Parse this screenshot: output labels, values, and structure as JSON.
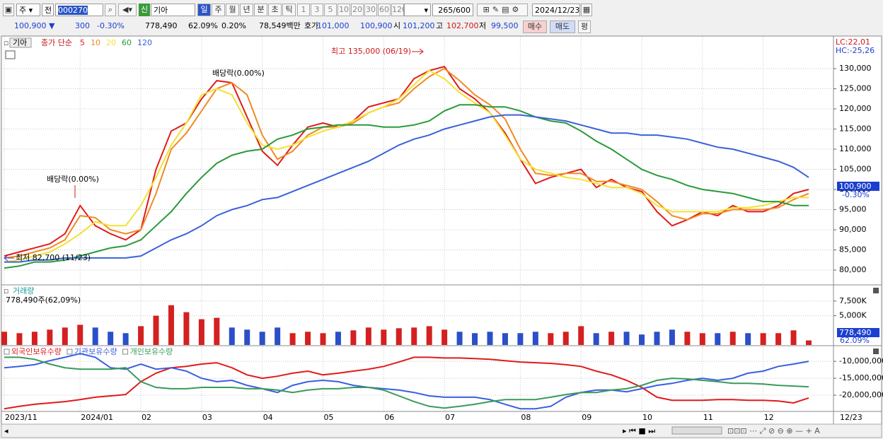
{
  "toolbar": {
    "market": "주",
    "scope": "전",
    "code": "000270",
    "badge": "신",
    "name": "기아",
    "periods": [
      "일",
      "주",
      "월",
      "년",
      "분",
      "초",
      "틱"
    ],
    "intervals": [
      "1",
      "3",
      "5",
      "10",
      "20",
      "30",
      "60",
      "120"
    ],
    "count": "265",
    "max": "/600",
    "date": "2024/12/23"
  },
  "quote": {
    "price": "100,900 ▼",
    "change": "300",
    "change_pct": "-0.30%",
    "volume": "778,490",
    "volume_ratio": "62.09%",
    "turnover_pct": "0.20%",
    "amount": "78,549백만",
    "ask_label": "호가",
    "ask": "101,000",
    "bid": "100,900",
    "open_label": "시",
    "open": "101,200",
    "high_label": "고",
    "high": "102,700",
    "low_label": "저",
    "low": "99,500",
    "buy": "매수",
    "sell": "매도",
    "eval": "평"
  },
  "chart_tab": "기아",
  "chart_data": [
    {
      "type": "line",
      "legend_title": "종가 단순",
      "ylim": [
        76500,
        137900
      ],
      "yticks": [
        {
          "value": 80000,
          "label": "80,000"
        },
        {
          "value": 85000,
          "label": "85,000"
        },
        {
          "value": 90000,
          "label": "90,000"
        },
        {
          "value": 95000,
          "label": "95,000"
        },
        {
          "value": 100000,
          "label": "100,000"
        },
        {
          "value": 105000,
          "label": "105,000"
        },
        {
          "value": 110000,
          "label": "110,000"
        },
        {
          "value": 115000,
          "label": "115,000"
        },
        {
          "value": 120000,
          "label": "120,000"
        },
        {
          "value": 125000,
          "label": "125,000"
        },
        {
          "value": 130000,
          "label": "130,000"
        }
      ],
      "grid": true,
      "annotations": {
        "high": "최고 135,000 (06/19)",
        "ex_div": [
          "배당락(0.00%)",
          "배당락(0.00%)"
        ],
        "low": "최저 82,700 (11/23)"
      },
      "lc": "LC:22,01",
      "hc": "HC:-25,26",
      "last_label": "100,900",
      "last_change": "-0.30%",
      "series": [
        {
          "name": "5",
          "color": "#e01b1b",
          "values": [
            83500,
            84500,
            85500,
            86500,
            89000,
            96000,
            91000,
            89000,
            87500,
            90000,
            105000,
            114500,
            116500,
            122500,
            127000,
            126500,
            118000,
            109500,
            106000,
            111000,
            115500,
            116500,
            115500,
            117000,
            120500,
            121500,
            122500,
            127500,
            129500,
            130500,
            125000,
            122500,
            119000,
            114000,
            107500,
            101500,
            103000,
            104000,
            105000,
            100500,
            102500,
            100500,
            99500,
            94500,
            91000,
            92500,
            94500,
            93500,
            96000,
            94500,
            94500,
            96000,
            99000,
            100000
          ]
        },
        {
          "name": "10",
          "color": "#f08a24",
          "values": [
            83000,
            83500,
            84500,
            85500,
            87500,
            93500,
            93000,
            90000,
            89000,
            90000,
            99000,
            110000,
            114000,
            119500,
            125000,
            126500,
            123500,
            113500,
            107500,
            109500,
            113500,
            115500,
            115500,
            116500,
            119000,
            120500,
            121500,
            125000,
            128000,
            130000,
            127000,
            123500,
            121000,
            117500,
            110000,
            104000,
            103500,
            104000,
            104000,
            102000,
            102000,
            101000,
            100000,
            97000,
            93500,
            92500,
            94000,
            94000,
            95000,
            95000,
            95000,
            95500,
            97500,
            99000
          ]
        },
        {
          "name": "20",
          "color": "#f2e233",
          "values": [
            82000,
            82500,
            83500,
            84500,
            86500,
            89000,
            92000,
            91000,
            91000,
            96000,
            103000,
            111000,
            116500,
            123500,
            125000,
            123500,
            116500,
            111000,
            110000,
            111000,
            113000,
            114500,
            115500,
            117000,
            119000,
            120500,
            122500,
            126000,
            129500,
            127500,
            124000,
            121500,
            119000,
            113500,
            107500,
            105000,
            104000,
            103000,
            102500,
            101500,
            100500,
            100500,
            99000,
            96000,
            94500,
            94500,
            94500,
            94500,
            95500,
            95500,
            96000,
            97000,
            98000,
            98000
          ]
        },
        {
          "name": "60",
          "color": "#2a9a3a",
          "values": [
            80500,
            81000,
            82000,
            82000,
            82500,
            83500,
            84500,
            85500,
            86000,
            87500,
            91000,
            94500,
            99000,
            103000,
            106500,
            108500,
            109500,
            110000,
            112500,
            113500,
            115000,
            115500,
            116000,
            116000,
            116000,
            115500,
            115500,
            116000,
            117000,
            119500,
            121000,
            121000,
            120500,
            120500,
            119500,
            118000,
            117000,
            116500,
            114500,
            112000,
            110000,
            107500,
            105000,
            103500,
            102500,
            101000,
            100000,
            99500,
            99000,
            98000,
            97000,
            97000,
            96000,
            96000
          ]
        },
        {
          "name": "120",
          "color": "#3a62d8",
          "values": [
            82000,
            82000,
            82500,
            82500,
            83000,
            83000,
            83000,
            83000,
            83000,
            83500,
            85500,
            87500,
            89000,
            91000,
            93500,
            95000,
            96000,
            97500,
            98000,
            99500,
            101000,
            102500,
            104000,
            105500,
            107000,
            109000,
            111000,
            112500,
            113500,
            115000,
            116000,
            117000,
            118000,
            118500,
            118500,
            118000,
            117500,
            117000,
            116000,
            115000,
            114000,
            114000,
            113500,
            113500,
            113000,
            112500,
            111500,
            110500,
            110000,
            109000,
            108000,
            107000,
            105500,
            103000
          ]
        }
      ]
    },
    {
      "type": "bar",
      "title": "거래량",
      "subtitle": "778,490주(62,09%)",
      "color_up": "#d42020",
      "color_down": "#2a4fc8",
      "ylim": [
        0,
        9900000
      ],
      "yticks": [
        {
          "value": 5000000,
          "label": "5,000K"
        },
        {
          "value": 7500000,
          "label": "7,500K"
        }
      ],
      "last_label": "778,490",
      "last_ratio": "62.09%",
      "values": [
        2260000,
        2020000,
        2260000,
        2620000,
        2980000,
        3450000,
        2980000,
        2260000,
        2020000,
        3210000,
        5000000,
        6790000,
        5600000,
        4400000,
        4640000,
        2980000,
        2620000,
        2260000,
        2980000,
        2020000,
        2260000,
        2020000,
        2260000,
        2500000,
        2980000,
        2620000,
        2860000,
        2980000,
        3210000,
        2620000,
        2260000,
        2020000,
        2260000,
        2020000,
        2020000,
        2260000,
        2020000,
        2260000,
        3210000,
        2020000,
        2260000,
        2260000,
        1790000,
        2260000,
        2620000,
        2260000,
        2020000,
        2020000,
        2260000,
        2020000,
        2020000,
        2020000,
        2500000,
        778490
      ]
    },
    {
      "type": "line",
      "categories": [
        "2023/11",
        null,
        null,
        null,
        null,
        "2024/01",
        null,
        null,
        null,
        "02",
        null,
        null,
        null,
        "03",
        null,
        null,
        null,
        "04",
        null,
        null,
        null,
        "05",
        null,
        null,
        null,
        "06",
        null,
        null,
        null,
        "07",
        null,
        null,
        null,
        null,
        "08",
        null,
        null,
        null,
        "09",
        null,
        null,
        null,
        "10",
        null,
        null,
        null,
        "11",
        null,
        null,
        null,
        "12",
        null,
        null,
        null
      ],
      "x_end_label": "12/23",
      "ylim": [
        -24800000,
        -6000000
      ],
      "yticks": [
        {
          "value": -10000000,
          "label": "-10,000,000"
        },
        {
          "value": -15000000,
          "label": "-15,000,000"
        },
        {
          "value": -20000000,
          "label": "-20,000,000"
        }
      ],
      "series": [
        {
          "name": "외국인보유수량",
          "color": "#e01b1b",
          "values": [
            -24000000,
            -23300000,
            -22700000,
            -22300000,
            -21900000,
            -21300000,
            -20600000,
            -20200000,
            -19800000,
            -16000000,
            -13500000,
            -11900000,
            -11500000,
            -10800000,
            -10400000,
            -11900000,
            -14000000,
            -15000000,
            -14400000,
            -13500000,
            -12900000,
            -14000000,
            -13500000,
            -12900000,
            -12300000,
            -11500000,
            -10200000,
            -8800000,
            -8800000,
            -9000000,
            -9000000,
            -9200000,
            -9400000,
            -9800000,
            -10200000,
            -10400000,
            -10600000,
            -11000000,
            -11500000,
            -12900000,
            -14000000,
            -15600000,
            -17700000,
            -20600000,
            -21500000,
            -21500000,
            -21500000,
            -21300000,
            -21300000,
            -21500000,
            -21500000,
            -21700000,
            -22300000,
            -20800000
          ]
        },
        {
          "name": "기관보유수량",
          "color": "#3a5fe0",
          "values": [
            -11900000,
            -11500000,
            -11000000,
            -9800000,
            -8800000,
            -7700000,
            -8800000,
            -11900000,
            -12300000,
            -10800000,
            -12300000,
            -11900000,
            -12900000,
            -15000000,
            -16000000,
            -15600000,
            -17100000,
            -18100000,
            -19200000,
            -17100000,
            -16000000,
            -15600000,
            -16000000,
            -17100000,
            -17700000,
            -18100000,
            -18500000,
            -19200000,
            -20200000,
            -20600000,
            -20600000,
            -20600000,
            -21300000,
            -22700000,
            -24000000,
            -24000000,
            -23300000,
            -20600000,
            -19200000,
            -18500000,
            -18500000,
            -19000000,
            -18100000,
            -17100000,
            -16500000,
            -15600000,
            -15000000,
            -15600000,
            -15000000,
            -13500000,
            -12900000,
            -11500000,
            -10800000,
            -10000000
          ]
        },
        {
          "name": "개인보유수량",
          "color": "#3a9a5a",
          "values": [
            -8800000,
            -8800000,
            -9400000,
            -10800000,
            -11900000,
            -12300000,
            -12300000,
            -12300000,
            -11900000,
            -16000000,
            -17700000,
            -18100000,
            -18100000,
            -17700000,
            -17700000,
            -17700000,
            -18100000,
            -18100000,
            -18500000,
            -19200000,
            -18500000,
            -18100000,
            -18100000,
            -17700000,
            -17700000,
            -18500000,
            -20200000,
            -21900000,
            -23300000,
            -23800000,
            -23300000,
            -22700000,
            -21900000,
            -21300000,
            -21300000,
            -21300000,
            -20600000,
            -19800000,
            -19200000,
            -19200000,
            -18500000,
            -18100000,
            -17100000,
            -15600000,
            -15000000,
            -15200000,
            -15600000,
            -16000000,
            -16500000,
            -16500000,
            -16700000,
            -17100000,
            -17300000,
            -17500000
          ]
        }
      ]
    }
  ]
}
